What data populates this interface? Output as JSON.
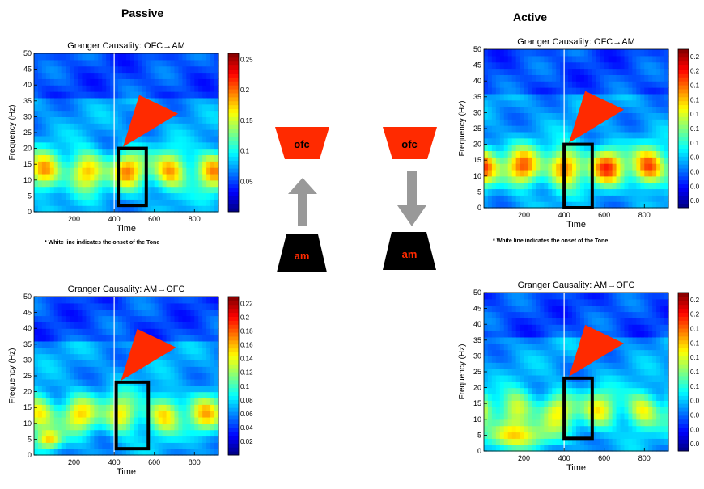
{
  "conditions": {
    "passive": {
      "title": "Passive",
      "note": "* White line indicates the onset of the Tone"
    },
    "active": {
      "title": "Active",
      "note": "* White line indicates the onset of the Tone"
    }
  },
  "diagram": {
    "top_label": "ofc",
    "bottom_label": "am",
    "colors": {
      "top": "#ff2a00",
      "bottom": "#000000",
      "arrow": "#999999",
      "label_on_top": "#000000",
      "label_on_bottom": "#ff2a00"
    }
  },
  "chart_data": [
    {
      "type": "heatmap",
      "id": "passive-ofc-am",
      "title": "Granger Causality: OFC→AM",
      "xlabel": "Time",
      "ylabel": "Frequency (Hz)",
      "xlim": [
        0,
        920
      ],
      "ylim": [
        0,
        50
      ],
      "xticks": [
        "200",
        "400",
        "600",
        "800"
      ],
      "yticks": [
        "0",
        "5",
        "10",
        "15",
        "20",
        "25",
        "30",
        "35",
        "40",
        "45",
        "50"
      ],
      "clim": [
        0,
        0.26
      ],
      "cbar_ticks": [
        "0.05",
        "0.1",
        "0.15",
        "0.2",
        "0.25"
      ],
      "onset_time": 400,
      "highlight": {
        "t0": 420,
        "t1": 560,
        "f0": 2,
        "f1": 20
      }
    },
    {
      "type": "heatmap",
      "id": "passive-am-ofc",
      "title": "Granger Causality: AM→OFC",
      "xlabel": "Time",
      "ylabel": "Frequency (Hz)",
      "xlim": [
        0,
        920
      ],
      "ylim": [
        0,
        50
      ],
      "xticks": [
        "200",
        "400",
        "600",
        "800"
      ],
      "yticks": [
        "0",
        "5",
        "10",
        "15",
        "20",
        "25",
        "30",
        "35",
        "40",
        "45",
        "50"
      ],
      "clim": [
        0,
        0.23
      ],
      "cbar_ticks": [
        "0.02",
        "0.04",
        "0.06",
        "0.08",
        "0.1",
        "0.12",
        "0.14",
        "0.16",
        "0.18",
        "0.2",
        "0.22"
      ],
      "onset_time": 400,
      "highlight": {
        "t0": 410,
        "t1": 570,
        "f0": 2,
        "f1": 23
      }
    },
    {
      "type": "heatmap",
      "id": "active-ofc-am",
      "title": "Granger Causality: OFC→AM",
      "xlabel": "Time",
      "ylabel": "Frequency (Hz)",
      "xlim": [
        0,
        920
      ],
      "ylim": [
        0,
        50
      ],
      "xticks": [
        "200",
        "400",
        "600",
        "800"
      ],
      "yticks": [
        "0",
        "5",
        "10",
        "15",
        "20",
        "25",
        "30",
        "35",
        "40",
        "45",
        "50"
      ],
      "clim": [
        0,
        0.22
      ],
      "cbar_ticks": [
        "0.2",
        "0.2",
        "0.1",
        "0.1",
        "0.1",
        "0.1",
        "0.1",
        "0.0",
        "0.0",
        "0.0",
        "0.0"
      ],
      "onset_time": 400,
      "highlight": {
        "t0": 400,
        "t1": 540,
        "f0": 0,
        "f1": 20
      }
    },
    {
      "type": "heatmap",
      "id": "active-am-ofc",
      "title": "Granger Causality: AM→OFC",
      "xlabel": "Time",
      "ylabel": "Frequency (Hz)",
      "xlim": [
        0,
        920
      ],
      "ylim": [
        0,
        50
      ],
      "xticks": [
        "200",
        "400",
        "600",
        "800"
      ],
      "yticks": [
        "0",
        "5",
        "10",
        "15",
        "20",
        "25",
        "30",
        "35",
        "40",
        "45",
        "50"
      ],
      "clim": [
        0,
        0.22
      ],
      "cbar_ticks": [
        "0.2",
        "0.2",
        "0.1",
        "0.1",
        "0.1",
        "0.1",
        "0.1",
        "0.0",
        "0.0",
        "0.0",
        "0.0"
      ],
      "onset_time": 400,
      "highlight": {
        "t0": 400,
        "t1": 540,
        "f0": 4,
        "f1": 23
      }
    }
  ]
}
